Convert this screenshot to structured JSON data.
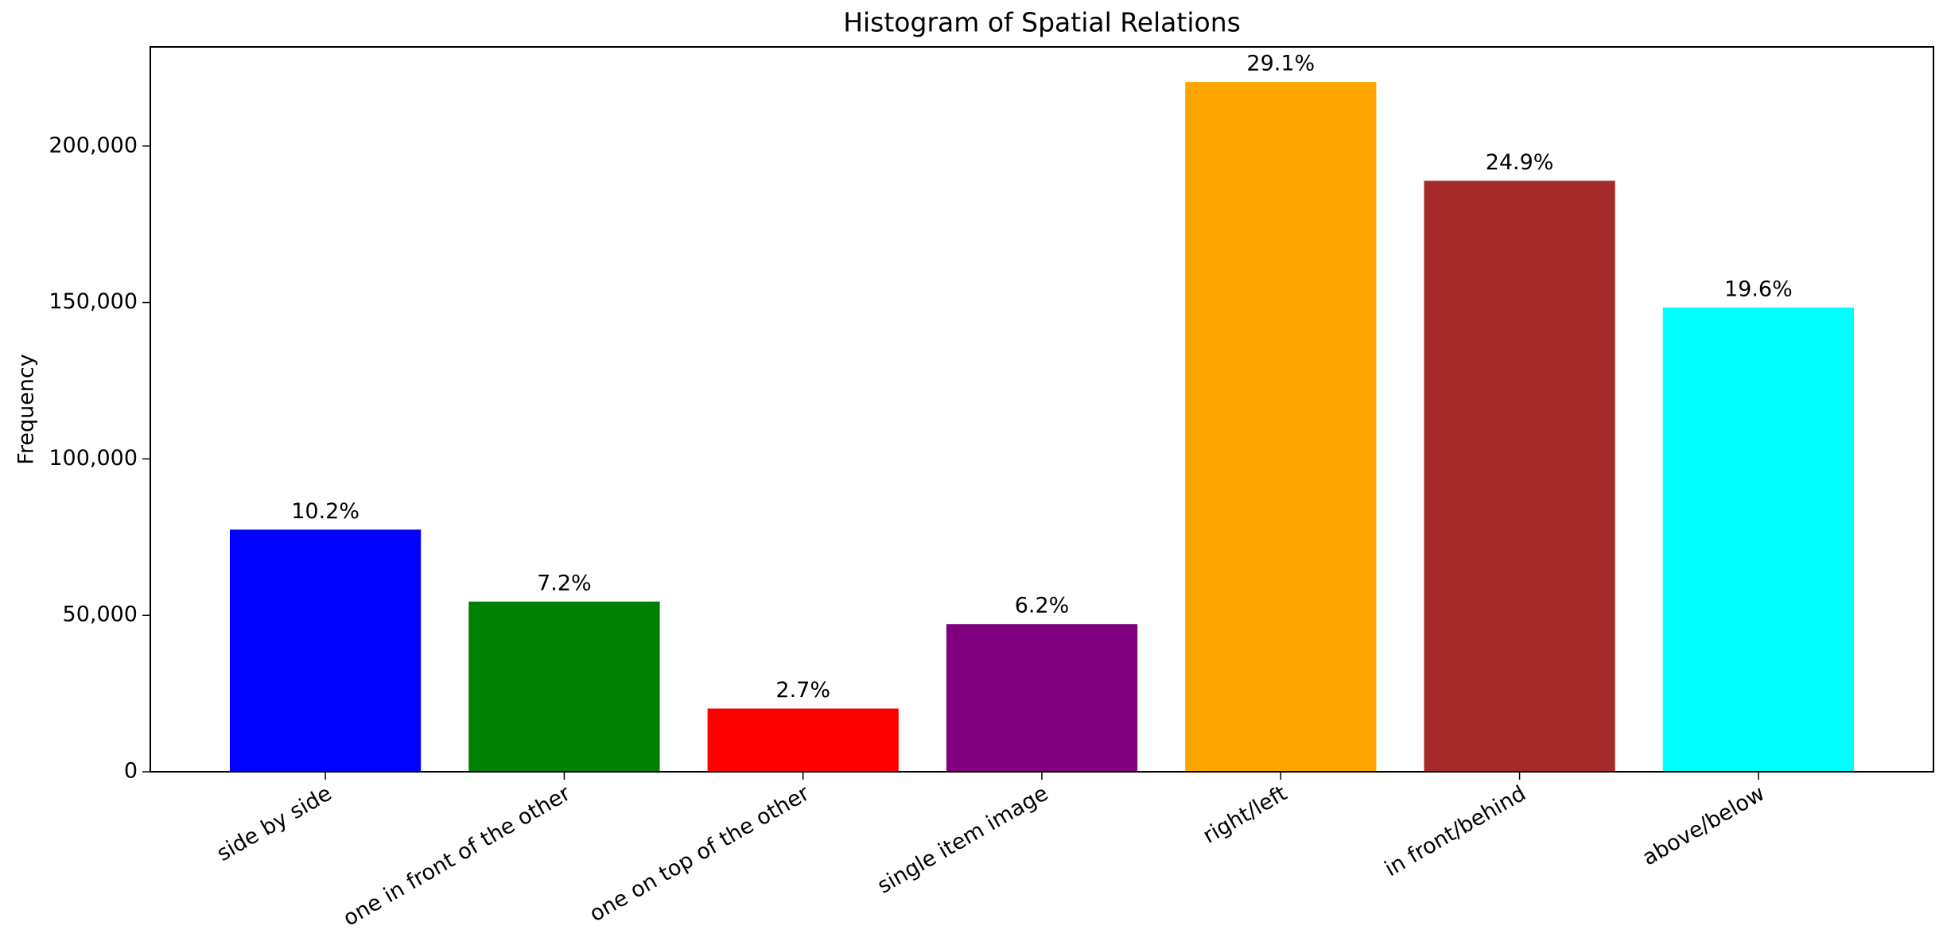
{
  "chart_data": {
    "type": "bar",
    "title": "Histogram of Spatial Relations",
    "y_label": "Frequency",
    "categories": [
      "side by side",
      "one in front of the other",
      "one on top of the other",
      "single item image",
      "right/left",
      "in front/behind",
      "above/below"
    ],
    "values": [
      77400,
      54400,
      20200,
      47200,
      220500,
      188900,
      148400
    ],
    "percent_labels": [
      "10.2%",
      "7.2%",
      "2.7%",
      "6.2%",
      "29.1%",
      "24.9%",
      "19.6%"
    ],
    "colors": [
      "#0000ff",
      "#008000",
      "#ff0000",
      "#800080",
      "#ffa500",
      "#a52a2a",
      "#00ffff"
    ],
    "ylim": [
      0,
      231700
    ],
    "yticks": [
      0,
      {
        "value": 50000,
        "label": "50,000"
      },
      {
        "value": 100000,
        "label": "100,000"
      },
      {
        "value": 150000,
        "label": "150,000"
      },
      {
        "value": 200000,
        "label": "200,000"
      }
    ],
    "grid": false
  }
}
